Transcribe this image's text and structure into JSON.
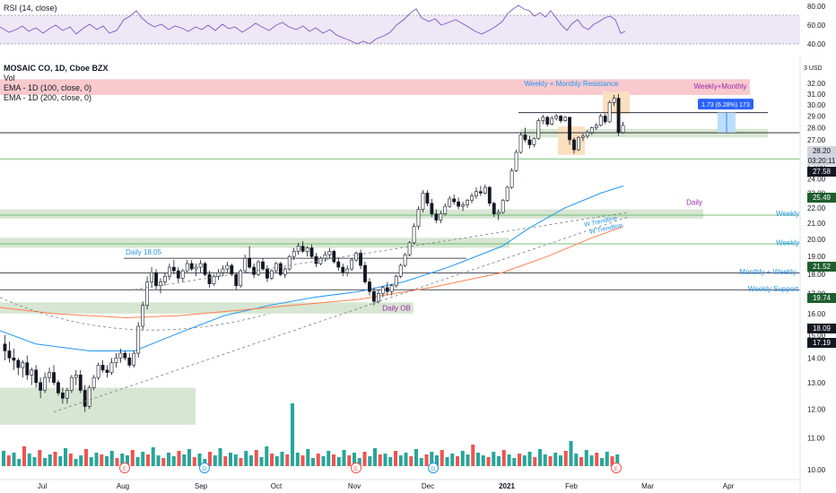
{
  "rsi_panel": {
    "label": "RSI (14, close)",
    "ticks": [
      80.0,
      60.0,
      40.0
    ]
  },
  "header": {
    "symbol": "MOSAIC CO, 1D, Cboe BZX",
    "vol": "Vol",
    "ema100": "EMA - 1D (100, close, 0)",
    "ema200": "EMA - 1D (200, close, 0)"
  },
  "price_axis": {
    "currency": "3 USD",
    "ticks": [
      32.0,
      31.0,
      30.0,
      29.0,
      28.0,
      27.0,
      26.0,
      25.0,
      24.0,
      23.0,
      22.0,
      21.0,
      20.0,
      19.0,
      18.0,
      17.0,
      16.0,
      15.0,
      14.0,
      13.0,
      12.0,
      11.0,
      10.0
    ]
  },
  "time_axis": {
    "ticks": [
      "Jul",
      "Aug",
      "Sep",
      "Oct",
      "Nov",
      "Dec",
      "2021",
      "Feb",
      "Mar",
      "Apr"
    ]
  },
  "price_tags": {
    "last": {
      "value": "28.20",
      "countdown": "03:20:11"
    },
    "support": "27.58",
    "l2549": "25.49",
    "l2152": "21.52",
    "l1974": "19.74",
    "l1809": "18.09",
    "l1719": "17.19",
    "colors": {
      "up": "#26a69a",
      "down": "#ef5350",
      "green_tag": "#1e5e2e",
      "dark_tag": "#131722",
      "grey_tag": "#d1d4dc"
    }
  },
  "annotations": {
    "weekly_monthly_resistance": "Weekly + Monthly Resistance",
    "weekly_monthly": "Weekly+Monthly",
    "measure": "1.73 (6.28%) 173",
    "daily": "Daily",
    "weekly_a": "Weekly",
    "weekly_b": "Weekly",
    "monthly_weekly": "Monthly + Weekly",
    "weekly_support": "Weekly Support",
    "daily_1805": "Daily 18.05",
    "daily_ob": "Daily OB",
    "w_trendline_1": "W Trendline",
    "w_trendline_2": "W Trendline"
  },
  "event_markers": [
    "E",
    "D",
    "D",
    "E",
    "D",
    "D",
    "E"
  ],
  "chart_data": {
    "type": "candlestick",
    "title": "MOSAIC CO, 1D, Cboe BZX",
    "x": [
      "Jul",
      "Aug",
      "Sep",
      "Oct",
      "Nov",
      "Dec",
      "2021",
      "Feb",
      "Mar",
      "Apr"
    ],
    "y_scale": "log",
    "ylim": [
      10,
      32.5
    ],
    "series": [
      {
        "name": "EMA - 1D (100, close, 0)",
        "color": "#2196f3",
        "points": [
          [
            0,
            15.2
          ],
          [
            40,
            14.6
          ],
          [
            100,
            14.3
          ],
          [
            150,
            14.3
          ],
          [
            200,
            15.1
          ],
          [
            250,
            15.9
          ],
          [
            300,
            16.4
          ],
          [
            350,
            16.8
          ],
          [
            400,
            17.1
          ],
          [
            450,
            17.6
          ],
          [
            500,
            18.4
          ],
          [
            560,
            19.6
          ],
          [
            590,
            20.7
          ],
          [
            630,
            22.0
          ],
          [
            670,
            23.0
          ],
          [
            695,
            23.5
          ]
        ]
      },
      {
        "name": "EMA - 1D (200, close, 0)",
        "color": "#ff7f50",
        "points": [
          [
            0,
            16.3
          ],
          [
            60,
            16.0
          ],
          [
            140,
            15.8
          ],
          [
            200,
            15.9
          ],
          [
            300,
            16.3
          ],
          [
            400,
            16.7
          ],
          [
            480,
            17.3
          ],
          [
            560,
            18.1
          ],
          [
            610,
            19.0
          ],
          [
            660,
            20.1
          ],
          [
            695,
            20.8
          ]
        ]
      }
    ],
    "candles_ohlc": [
      [
        14.6,
        15.0,
        13.9,
        14.3
      ],
      [
        14.3,
        14.7,
        13.8,
        14.0
      ],
      [
        14.0,
        14.4,
        13.5,
        13.9
      ],
      [
        13.9,
        14.0,
        13.3,
        13.6
      ],
      [
        13.6,
        13.9,
        13.2,
        13.8
      ],
      [
        13.8,
        14.1,
        13.1,
        13.3
      ],
      [
        13.3,
        13.6,
        12.9,
        13.5
      ],
      [
        13.5,
        13.7,
        12.8,
        13.0
      ],
      [
        13.0,
        13.2,
        12.4,
        12.7
      ],
      [
        12.7,
        13.4,
        12.6,
        13.2
      ],
      [
        13.2,
        13.6,
        13.0,
        13.4
      ],
      [
        13.4,
        13.7,
        12.9,
        13.0
      ],
      [
        13.0,
        13.1,
        12.5,
        12.6
      ],
      [
        12.6,
        12.8,
        12.2,
        12.4
      ],
      [
        12.4,
        12.8,
        12.2,
        12.7
      ],
      [
        12.7,
        13.3,
        12.6,
        13.2
      ],
      [
        13.2,
        13.5,
        12.9,
        13.3
      ],
      [
        13.3,
        13.5,
        12.6,
        12.7
      ],
      [
        12.7,
        12.9,
        11.9,
        12.1
      ],
      [
        12.1,
        12.9,
        12.0,
        12.8
      ],
      [
        12.8,
        13.3,
        12.7,
        13.2
      ],
      [
        13.2,
        13.8,
        13.1,
        13.7
      ],
      [
        13.7,
        13.9,
        13.4,
        13.5
      ],
      [
        13.5,
        13.7,
        13.2,
        13.4
      ],
      [
        13.4,
        14.0,
        13.3,
        13.8
      ],
      [
        13.8,
        14.2,
        13.6,
        14.0
      ],
      [
        14.0,
        14.4,
        13.8,
        14.2
      ],
      [
        14.2,
        14.3,
        13.9,
        14.0
      ],
      [
        14.0,
        14.2,
        13.6,
        13.7
      ],
      [
        13.7,
        14.3,
        13.6,
        14.2
      ],
      [
        14.2,
        15.6,
        14.0,
        15.4
      ],
      [
        15.4,
        16.6,
        15.2,
        16.4
      ],
      [
        16.4,
        17.9,
        16.2,
        17.6
      ],
      [
        17.6,
        18.4,
        17.3,
        18.1
      ],
      [
        18.1,
        18.3,
        17.2,
        17.4
      ],
      [
        17.4,
        17.8,
        17.0,
        17.6
      ],
      [
        17.6,
        18.1,
        17.4,
        17.9
      ],
      [
        17.9,
        18.6,
        17.7,
        18.4
      ],
      [
        18.4,
        18.8,
        18.0,
        18.2
      ],
      [
        18.2,
        18.4,
        17.6,
        17.8
      ],
      [
        17.8,
        18.3,
        17.6,
        18.2
      ],
      [
        18.2,
        18.8,
        18.1,
        18.6
      ],
      [
        18.6,
        18.8,
        18.2,
        18.3
      ],
      [
        18.3,
        18.6,
        17.9,
        18.4
      ],
      [
        18.4,
        18.8,
        18.1,
        18.6
      ],
      [
        18.6,
        18.7,
        17.9,
        18.0
      ],
      [
        18.0,
        18.2,
        17.3,
        17.5
      ],
      [
        17.5,
        18.0,
        17.4,
        17.9
      ],
      [
        17.9,
        18.3,
        17.7,
        18.1
      ],
      [
        18.1,
        18.5,
        17.9,
        18.3
      ],
      [
        18.3,
        18.7,
        18.1,
        18.5
      ],
      [
        18.5,
        18.6,
        17.9,
        18.0
      ],
      [
        18.0,
        18.1,
        17.2,
        17.4
      ],
      [
        17.4,
        18.3,
        17.3,
        18.2
      ],
      [
        18.2,
        19.1,
        18.1,
        18.9
      ],
      [
        18.9,
        19.6,
        18.3,
        18.4
      ],
      [
        18.4,
        18.6,
        17.8,
        18.0
      ],
      [
        18.0,
        18.8,
        17.9,
        18.7
      ],
      [
        18.7,
        18.9,
        18.2,
        18.3
      ],
      [
        18.3,
        18.5,
        17.6,
        17.8
      ],
      [
        17.8,
        18.3,
        17.7,
        18.2
      ],
      [
        18.2,
        18.7,
        18.1,
        18.6
      ],
      [
        18.6,
        18.7,
        17.9,
        18.0
      ],
      [
        18.0,
        18.4,
        17.8,
        18.3
      ],
      [
        18.3,
        19.1,
        18.2,
        19.0
      ],
      [
        19.0,
        19.5,
        18.8,
        19.3
      ],
      [
        19.3,
        19.8,
        19.1,
        19.6
      ],
      [
        19.6,
        19.9,
        19.2,
        19.3
      ],
      [
        19.3,
        19.6,
        19.0,
        19.5
      ],
      [
        19.5,
        19.7,
        18.9,
        19.0
      ],
      [
        19.0,
        19.2,
        18.4,
        18.6
      ],
      [
        18.6,
        19.0,
        18.5,
        18.9
      ],
      [
        18.9,
        19.3,
        18.7,
        19.1
      ],
      [
        19.1,
        19.5,
        18.9,
        19.3
      ],
      [
        19.3,
        19.4,
        18.6,
        18.7
      ],
      [
        18.7,
        18.9,
        18.2,
        18.4
      ],
      [
        18.4,
        18.6,
        17.9,
        18.1
      ],
      [
        18.1,
        18.5,
        17.9,
        18.3
      ],
      [
        18.3,
        18.9,
        18.2,
        18.8
      ],
      [
        18.8,
        19.3,
        18.7,
        19.2
      ],
      [
        19.2,
        19.4,
        18.3,
        18.5
      ],
      [
        18.5,
        18.7,
        17.5,
        17.6
      ],
      [
        17.6,
        17.8,
        16.9,
        17.1
      ],
      [
        17.1,
        17.3,
        16.4,
        16.6
      ],
      [
        16.6,
        17.2,
        16.5,
        17.0
      ],
      [
        17.0,
        17.4,
        16.8,
        17.3
      ],
      [
        17.3,
        17.6,
        16.9,
        17.1
      ],
      [
        17.1,
        17.5,
        16.9,
        17.4
      ],
      [
        17.4,
        18.0,
        17.3,
        17.9
      ],
      [
        17.9,
        18.6,
        17.8,
        18.5
      ],
      [
        18.5,
        19.2,
        18.4,
        19.1
      ],
      [
        19.1,
        19.9,
        19.0,
        19.8
      ],
      [
        19.8,
        21.0,
        19.7,
        20.8
      ],
      [
        20.8,
        22.1,
        20.6,
        21.9
      ],
      [
        21.9,
        23.2,
        21.7,
        23.0
      ],
      [
        23.0,
        23.2,
        22.1,
        22.3
      ],
      [
        22.3,
        22.6,
        21.4,
        21.6
      ],
      [
        21.6,
        21.9,
        21.0,
        21.2
      ],
      [
        21.2,
        21.8,
        21.0,
        21.6
      ],
      [
        21.6,
        22.3,
        21.5,
        22.1
      ],
      [
        22.1,
        22.8,
        22.0,
        22.6
      ],
      [
        22.6,
        22.9,
        22.2,
        22.4
      ],
      [
        22.4,
        22.7,
        21.9,
        22.1
      ],
      [
        22.1,
        22.4,
        21.8,
        22.2
      ],
      [
        22.2,
        22.6,
        22.0,
        22.5
      ],
      [
        22.5,
        23.0,
        22.3,
        22.8
      ],
      [
        22.8,
        23.4,
        22.6,
        23.1
      ],
      [
        23.1,
        23.5,
        22.8,
        23.0
      ],
      [
        23.0,
        23.6,
        22.9,
        23.4
      ],
      [
        23.4,
        23.5,
        22.1,
        22.3
      ],
      [
        22.3,
        22.4,
        21.4,
        21.6
      ],
      [
        21.6,
        21.9,
        21.2,
        21.7
      ],
      [
        21.7,
        22.6,
        21.6,
        22.5
      ],
      [
        22.5,
        23.5,
        22.4,
        23.4
      ],
      [
        23.4,
        24.8,
        23.3,
        24.6
      ],
      [
        24.6,
        26.2,
        24.5,
        26.0
      ],
      [
        26.0,
        27.6,
        25.9,
        27.4
      ],
      [
        27.4,
        28.0,
        26.8,
        27.0
      ],
      [
        27.0,
        27.3,
        26.3,
        26.6
      ],
      [
        26.6,
        27.2,
        26.4,
        27.1
      ],
      [
        27.1,
        28.8,
        27.0,
        28.6
      ],
      [
        28.6,
        29.1,
        28.3,
        28.9
      ],
      [
        28.9,
        29.0,
        28.1,
        28.3
      ],
      [
        28.3,
        29.0,
        28.2,
        28.8
      ],
      [
        28.8,
        29.2,
        28.6,
        29.0
      ],
      [
        29.0,
        29.1,
        28.4,
        28.6
      ],
      [
        28.6,
        29.0,
        28.5,
        28.9
      ],
      [
        28.9,
        28.9,
        26.6,
        27.0
      ],
      [
        27.0,
        27.2,
        25.9,
        26.2
      ],
      [
        26.2,
        27.3,
        26.1,
        27.2
      ],
      [
        27.2,
        27.5,
        26.9,
        27.3
      ],
      [
        27.3,
        27.8,
        27.1,
        27.6
      ],
      [
        27.6,
        28.1,
        27.4,
        28.0
      ],
      [
        28.0,
        28.4,
        27.8,
        28.2
      ],
      [
        28.2,
        29.2,
        28.1,
        29.0
      ],
      [
        29.0,
        29.2,
        28.3,
        28.5
      ],
      [
        28.5,
        30.4,
        28.4,
        30.2
      ],
      [
        30.2,
        30.9,
        29.9,
        30.6
      ],
      [
        30.6,
        31.0,
        27.3,
        27.6
      ],
      [
        27.6,
        28.5,
        27.5,
        28.2
      ]
    ],
    "volume_heights": [
      17,
      12,
      15,
      8,
      22,
      14,
      10,
      18,
      9,
      13,
      16,
      11,
      20,
      14,
      8,
      12,
      19,
      10,
      15,
      13,
      11,
      17,
      9,
      14,
      12,
      18,
      10,
      16,
      13,
      21,
      12,
      9,
      15,
      11,
      17,
      13,
      19,
      10,
      14,
      8,
      16,
      12,
      20,
      11,
      15,
      13,
      9,
      17,
      12,
      18,
      10,
      22,
      14,
      11,
      16,
      13,
      70,
      15,
      12,
      19,
      9,
      14,
      11,
      17,
      13,
      10,
      18,
      12,
      15,
      9,
      16,
      11,
      20,
      13,
      14,
      10,
      17,
      12,
      15,
      11,
      19,
      9,
      13,
      16,
      12,
      18,
      10,
      14,
      11,
      17,
      13,
      24,
      15,
      12,
      10,
      16,
      11,
      18,
      13,
      9,
      14,
      12,
      16,
      10,
      19,
      13,
      11,
      15,
      12,
      17,
      28,
      14,
      10,
      18,
      12,
      15,
      9,
      16,
      11,
      13
    ],
    "horizontal_levels": [
      27.58,
      25.49,
      21.52,
      19.74,
      18.09,
      17.19,
      29.3
    ]
  }
}
